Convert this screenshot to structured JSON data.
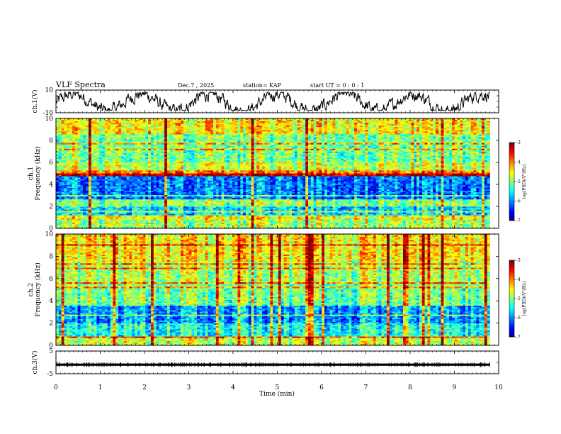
{
  "header": {
    "title": "VLF Spectra",
    "date": "Dec.7 , 2025",
    "station": "station= KAP",
    "start_ut": "start  UT =   0 : 0  : 1"
  },
  "chart_data": [
    {
      "type": "line",
      "name": "ch1-waveform",
      "ylabel": "ch.1(V)",
      "ylim": [
        -10,
        10
      ],
      "yticks": [
        "10",
        "-10"
      ],
      "xlim": [
        0,
        10
      ],
      "description_series": "voltage trace",
      "series": [
        {
          "name": "ch.1",
          "x_range": [
            0,
            9.8
          ],
          "amplitude_range": [
            -8,
            8
          ]
        }
      ]
    },
    {
      "type": "heatmap",
      "name": "ch1-spectrogram",
      "ylabel": "ch.1\nFrequency (kHz)",
      "ylabel_line1": "ch.1",
      "ylabel_line2": "Frequency (kHz)",
      "ylim": [
        0,
        10
      ],
      "yticks": [
        "0",
        "2",
        "4",
        "6",
        "8",
        "10"
      ],
      "xlim": [
        0,
        9.8
      ],
      "bands": [
        {
          "f": [
            0,
            0.8
          ],
          "level": -4.8
        },
        {
          "f": [
            0.8,
            1.2
          ],
          "level": -4.5
        },
        {
          "f": [
            1.2,
            2.0
          ],
          "level": -5.6
        },
        {
          "f": [
            2.0,
            2.6
          ],
          "level": -4.9
        },
        {
          "f": [
            2.6,
            4.8
          ],
          "level": -6.0
        },
        {
          "f": [
            4.8,
            5.3
          ],
          "level": -4.0
        },
        {
          "f": [
            5.3,
            6.0
          ],
          "level": -4.7
        },
        {
          "f": [
            6.0,
            8.5
          ],
          "level": -5.0
        },
        {
          "f": [
            8.5,
            10.0
          ],
          "level": -4.4
        }
      ],
      "colorbar": {
        "label": "log(PSD)(V²/Hz)",
        "range": [
          -7,
          -3
        ],
        "ticks": [
          "-3",
          "-4",
          "-5",
          "-6",
          "-7"
        ]
      }
    },
    {
      "type": "heatmap",
      "name": "ch2-spectrogram",
      "ylabel_line1": "ch.2",
      "ylabel_line2": "Frequency (kHz)",
      "ylim": [
        0,
        10
      ],
      "yticks": [
        "0",
        "2",
        "4",
        "6",
        "8",
        "10"
      ],
      "xlim": [
        0,
        9.8
      ],
      "bands": [
        {
          "f": [
            0,
            0.8
          ],
          "level": -4.7
        },
        {
          "f": [
            0.8,
            2.0
          ],
          "level": -5.4
        },
        {
          "f": [
            2.0,
            3.5
          ],
          "level": -5.9
        },
        {
          "f": [
            3.5,
            5.5
          ],
          "level": -5.0
        },
        {
          "f": [
            5.5,
            7.5
          ],
          "level": -4.8
        },
        {
          "f": [
            7.5,
            10.0
          ],
          "level": -4.4
        }
      ],
      "colorbar": {
        "label": "log(PSD)(V²/Hz)",
        "range": [
          -7,
          -3
        ],
        "ticks": [
          "-3",
          "-4",
          "-5",
          "-6",
          "-7"
        ]
      }
    },
    {
      "type": "line",
      "name": "ch3-signal",
      "ylabel": "ch.3(V)",
      "ylim": [
        -5,
        5
      ],
      "yticks": [
        "5",
        "0",
        "-5"
      ],
      "xlim": [
        0,
        10
      ],
      "series": [
        {
          "name": "ch.3",
          "level_range": [
            -1.5,
            -0.5
          ],
          "x_range": [
            0,
            9.8
          ]
        }
      ]
    }
  ],
  "x_axis": {
    "label": "Time (min)",
    "ticks": [
      "0",
      "1",
      "2",
      "3",
      "4",
      "5",
      "6",
      "7",
      "8",
      "9",
      "10"
    ],
    "range": [
      0,
      10
    ]
  }
}
